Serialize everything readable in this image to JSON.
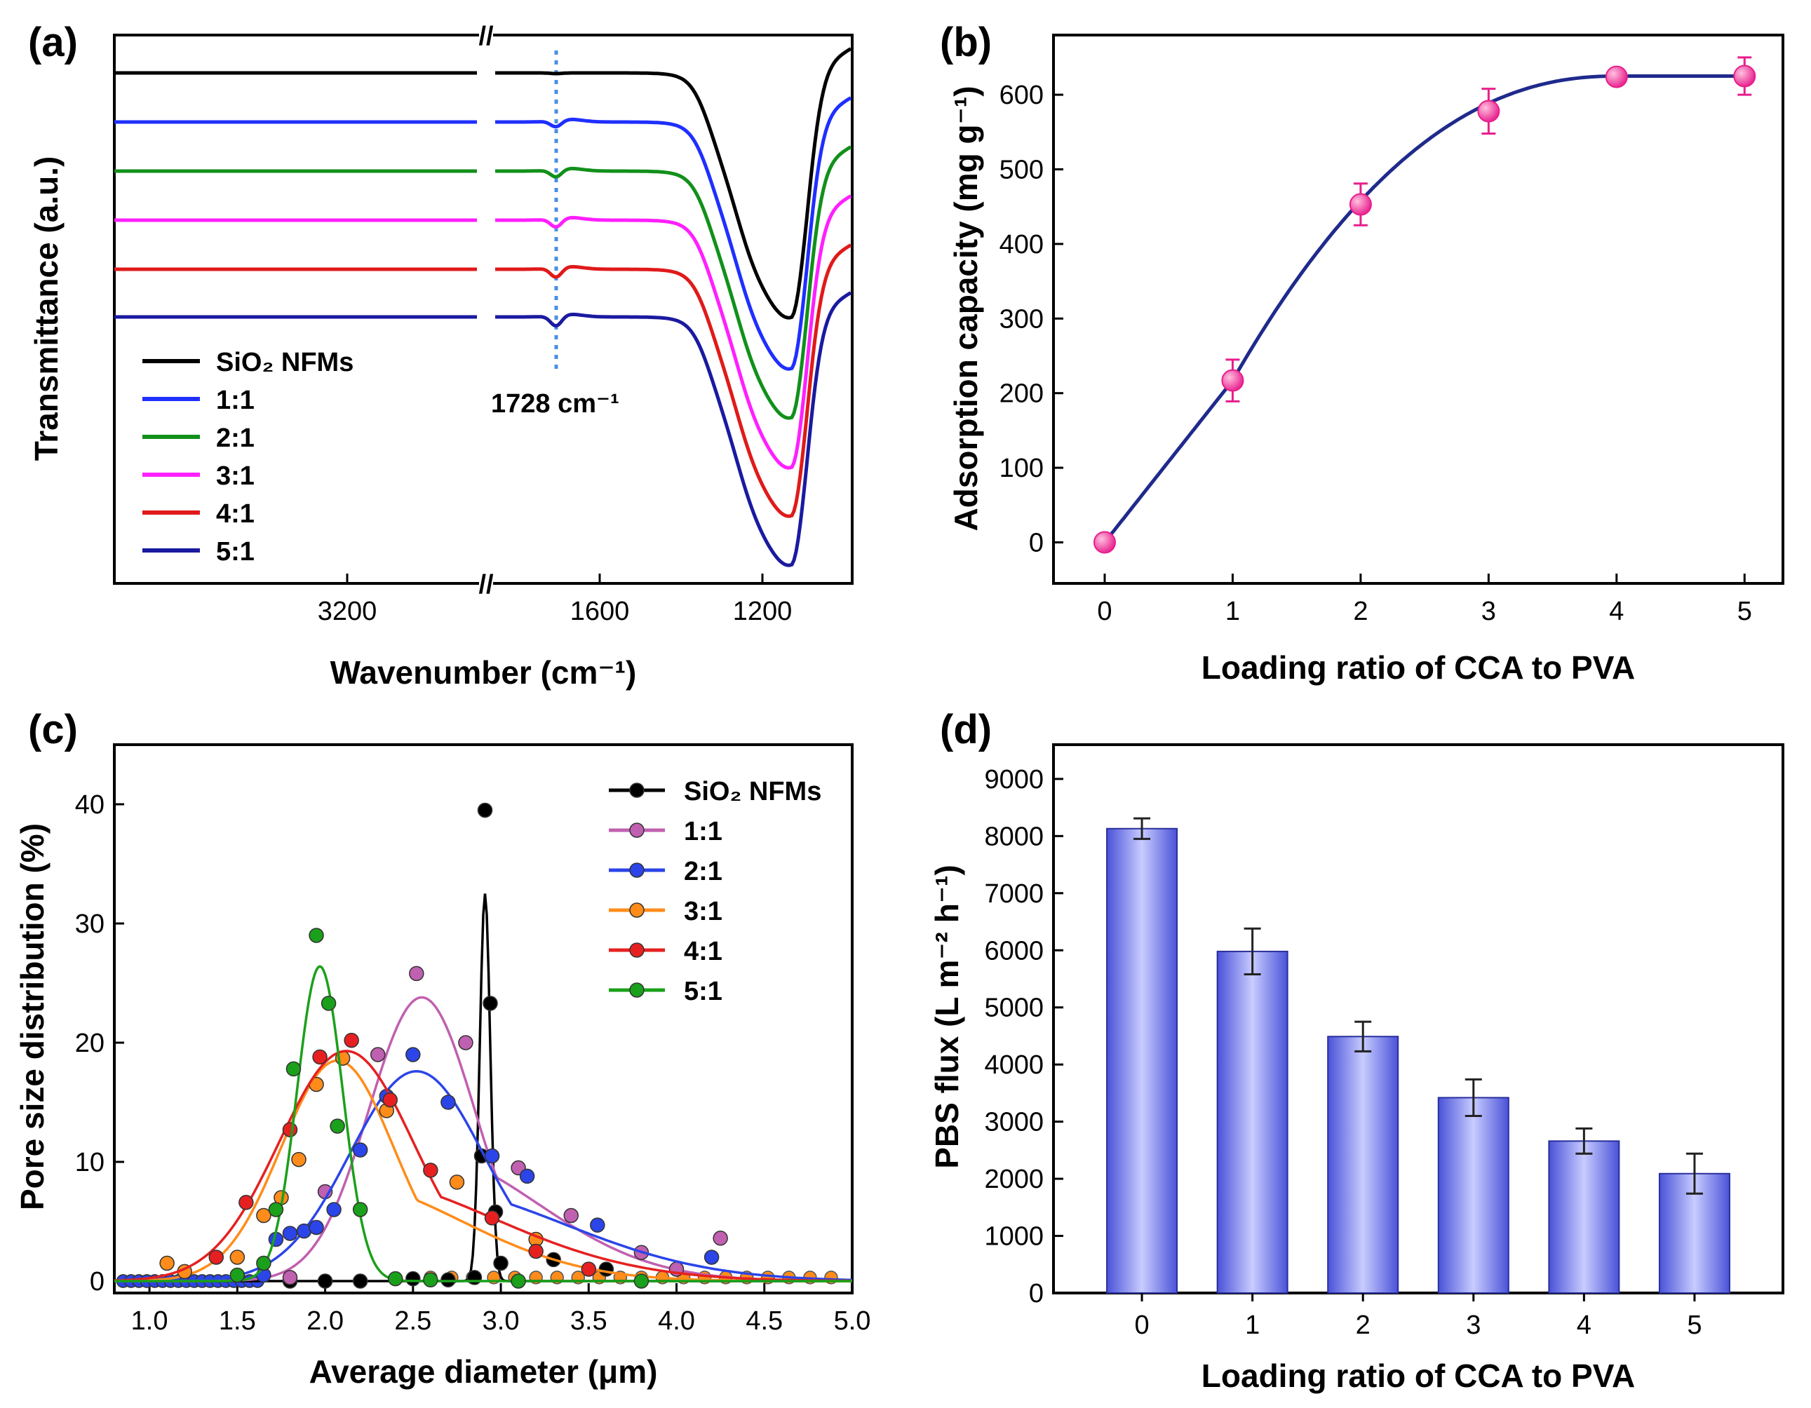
{
  "chart_data": [
    {
      "panel": "(a)",
      "type": "line",
      "title": "",
      "xlabel": "Wavenumber (cm⁻¹)",
      "ylabel": "Transmittance (a.u.)",
      "x_ticks": [
        "3200",
        "1600",
        "1200"
      ],
      "break_mark": "//",
      "annotation": "1728 cm⁻¹",
      "annotation_x": 1728,
      "series": [
        {
          "name": "SiO₂ NFMs",
          "color": "#000000"
        },
        {
          "name": "1:1",
          "color": "#1f2fff"
        },
        {
          "name": "2:1",
          "color": "#11901a"
        },
        {
          "name": "3:1",
          "color": "#ff1fff"
        },
        {
          "name": "4:1",
          "color": "#e01a1a"
        },
        {
          "name": "5:1",
          "color": "#1a1aa0"
        }
      ]
    },
    {
      "panel": "(b)",
      "type": "scatter",
      "xlabel": "Loading ratio of CCA to PVA",
      "ylabel": "Adsorption capacity (mg g⁻¹)",
      "x": [
        0,
        1,
        2,
        3,
        4,
        5
      ],
      "values": [
        0,
        217,
        453,
        578,
        624,
        625
      ],
      "errors": [
        0,
        28,
        28,
        30,
        10,
        25
      ],
      "xlim": [
        -0.4,
        5.3
      ],
      "ylim": [
        -55,
        680
      ],
      "x_ticks": [
        "0",
        "1",
        "2",
        "3",
        "4",
        "5"
      ],
      "y_ticks": [
        "0",
        "100",
        "200",
        "300",
        "400",
        "500",
        "600"
      ],
      "point_color": "#e81e8c",
      "fit_color": "#1f2a8c"
    },
    {
      "panel": "(c)",
      "type": "scatter",
      "xlabel": "Average diameter (μm)",
      "ylabel": "Pore size distribution (%)",
      "xlim": [
        0.8,
        5.0
      ],
      "ylim": [
        -1,
        45
      ],
      "x_ticks": [
        "1.0",
        "1.5",
        "2.0",
        "2.5",
        "3.0",
        "3.5",
        "4.0",
        "4.5",
        "5.0"
      ],
      "y_ticks": [
        "0",
        "10",
        "20",
        "30",
        "40"
      ],
      "series": [
        {
          "name": "SiO₂ NFMs",
          "color": "#000000",
          "fit": {
            "mu": 2.91,
            "sigma": 0.03,
            "amp": 32.5
          },
          "x": [
            1.8,
            2.0,
            2.2,
            2.5,
            2.7,
            2.85,
            2.89,
            2.91,
            2.94,
            2.97,
            3.0,
            3.3,
            3.6
          ],
          "y": [
            0,
            0,
            0,
            0.2,
            0.1,
            0.3,
            10.5,
            39.5,
            23.3,
            5.8,
            1.5,
            1.8,
            1.0
          ]
        },
        {
          "name": "1:1",
          "color": "#c060b0",
          "fit": {
            "mu": 2.55,
            "sigma": 0.3,
            "amp": 23.8
          },
          "x": [
            1.8,
            2.0,
            2.3,
            2.52,
            2.8,
            3.1,
            3.4,
            3.8,
            4.0,
            4.25
          ],
          "y": [
            0.3,
            7.5,
            19,
            25.8,
            20,
            9.5,
            5.5,
            2.4,
            1.0,
            3.6
          ]
        },
        {
          "name": "2:1",
          "color": "#2b45e8",
          "fit": {
            "mu": 2.52,
            "sigma": 0.38,
            "amp": 17.6
          },
          "x": [
            1.65,
            1.72,
            1.8,
            1.88,
            1.95,
            2.05,
            2.2,
            2.35,
            2.5,
            2.7,
            2.95,
            3.15,
            3.55,
            4.2
          ],
          "y": [
            0.5,
            3.5,
            4.0,
            4.2,
            4.5,
            6.0,
            11,
            15.5,
            19,
            15,
            10.5,
            8.8,
            4.7,
            2.0
          ]
        },
        {
          "name": "3:1",
          "color": "#ff8c1a",
          "fit": {
            "mu": 2.07,
            "sigma": 0.32,
            "amp": 18.5
          },
          "x": [
            1.1,
            1.2,
            1.5,
            1.65,
            1.75,
            1.85,
            1.95,
            2.1,
            2.35,
            2.75,
            3.2
          ],
          "y": [
            1.5,
            0.8,
            2.0,
            5.5,
            7.0,
            10.2,
            16.5,
            18.7,
            14.3,
            8.3,
            3.5
          ]
        },
        {
          "name": "4:1",
          "color": "#e62020",
          "fit": {
            "mu": 2.12,
            "sigma": 0.38,
            "amp": 19.3
          },
          "x": [
            1.38,
            1.55,
            1.8,
            1.97,
            2.15,
            2.37,
            2.6,
            2.95,
            3.2,
            3.5
          ],
          "y": [
            2.0,
            6.6,
            12.7,
            18.8,
            20.2,
            15.2,
            9.3,
            5.3,
            2.5,
            1.0
          ]
        },
        {
          "name": "5:1",
          "color": "#1aa01a",
          "fit": {
            "mu": 1.97,
            "sigma": 0.13,
            "amp": 26.4
          },
          "x": [
            1.5,
            1.65,
            1.72,
            1.82,
            1.95,
            2.02,
            2.07,
            2.2,
            2.4,
            2.6,
            3.1,
            3.8
          ],
          "y": [
            0.5,
            1.5,
            6.0,
            17.8,
            29.0,
            23.3,
            13.0,
            6.0,
            0.2,
            0.1,
            0.0,
            0.0
          ]
        }
      ]
    },
    {
      "panel": "(d)",
      "type": "bar",
      "xlabel": "Loading ratio of CCA to PVA",
      "ylabel": "PBS flux (L m⁻² h⁻¹)",
      "categories": [
        "0",
        "1",
        "2",
        "3",
        "4",
        "5"
      ],
      "values": [
        8130,
        5980,
        4490,
        3420,
        2660,
        2090
      ],
      "errors": [
        180,
        400,
        260,
        320,
        220,
        350
      ],
      "ylim": [
        0,
        9600
      ],
      "y_ticks": [
        "0",
        "1000",
        "2000",
        "3000",
        "4000",
        "5000",
        "6000",
        "7000",
        "8000",
        "9000"
      ],
      "bar_color": "#8c93f0"
    }
  ]
}
